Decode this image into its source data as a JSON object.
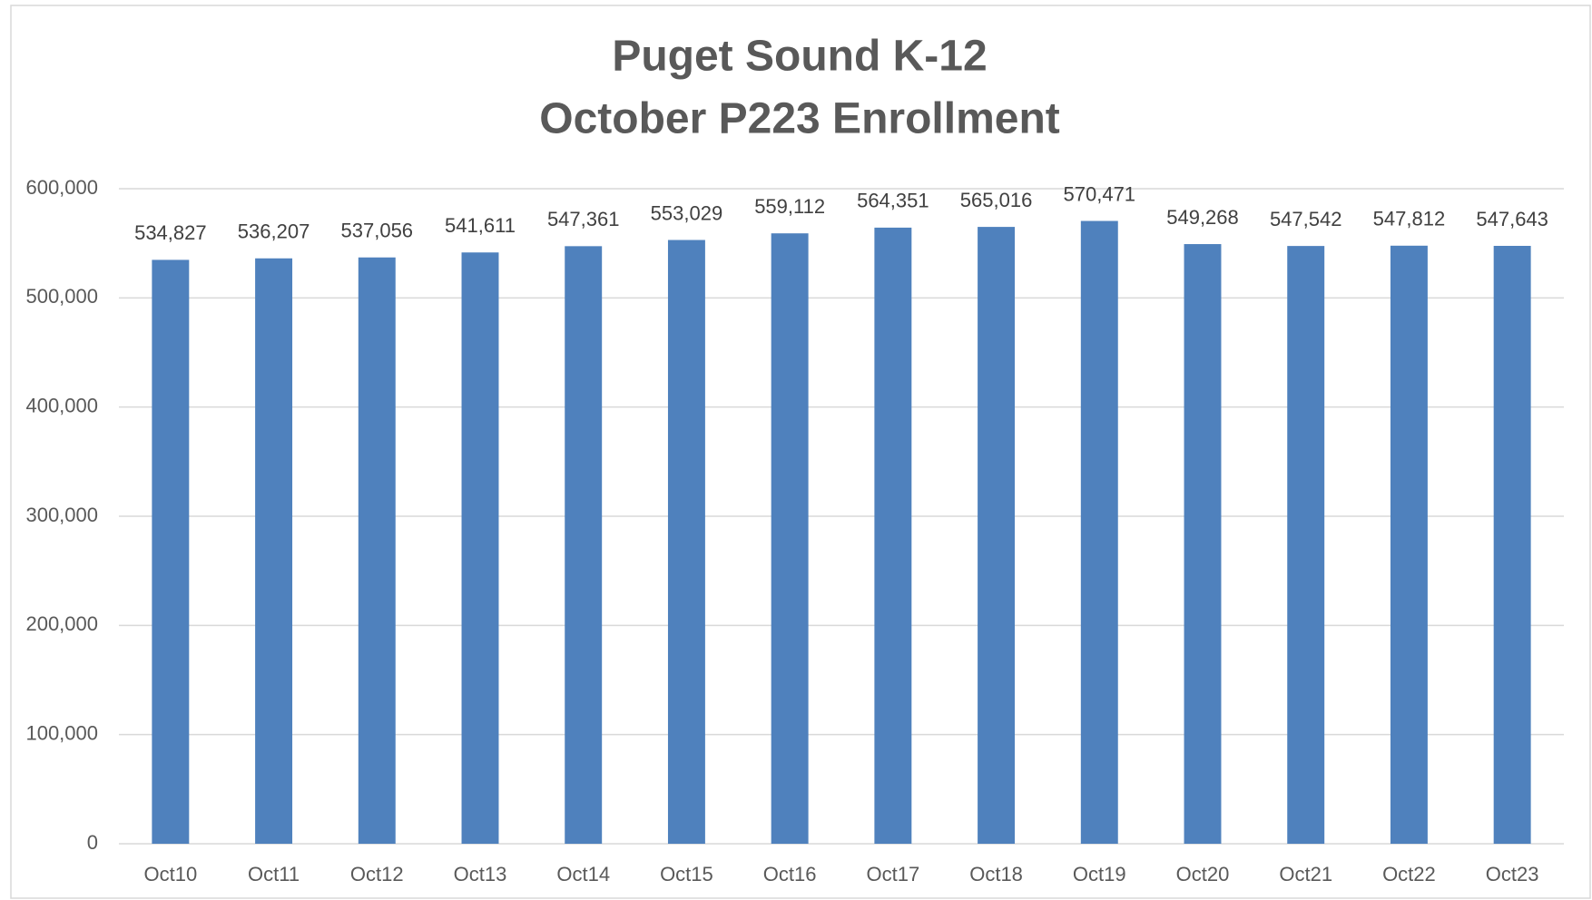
{
  "chart_data": {
    "type": "bar",
    "title": [
      "Puget Sound K-12",
      "October P223 Enrollment"
    ],
    "categories": [
      "Oct10",
      "Oct11",
      "Oct12",
      "Oct13",
      "Oct14",
      "Oct15",
      "Oct16",
      "Oct17",
      "Oct18",
      "Oct19",
      "Oct20",
      "Oct21",
      "Oct22",
      "Oct23"
    ],
    "values": [
      534827,
      536207,
      537056,
      541611,
      547361,
      553029,
      559112,
      564351,
      565016,
      570471,
      549268,
      547542,
      547812,
      547643
    ],
    "value_labels": [
      "534,827",
      "536,207",
      "537,056",
      "541,611",
      "547,361",
      "553,029",
      "559,112",
      "564,351",
      "565,016",
      "570,471",
      "549,268",
      "547,542",
      "547,812",
      "547,643"
    ],
    "color": "#4f81bd",
    "ylim": [
      0,
      600000
    ],
    "yticks": [
      0,
      {
        "value": 100000,
        "label": "100,000"
      },
      {
        "value": 200000,
        "label": "200,000"
      },
      {
        "value": 300000,
        "label": "300,000"
      },
      {
        "value": 400000,
        "label": "400,000"
      },
      {
        "value": 500000,
        "label": "500,000"
      },
      {
        "value": 600000,
        "label": "600,000"
      }
    ],
    "grid": true
  }
}
